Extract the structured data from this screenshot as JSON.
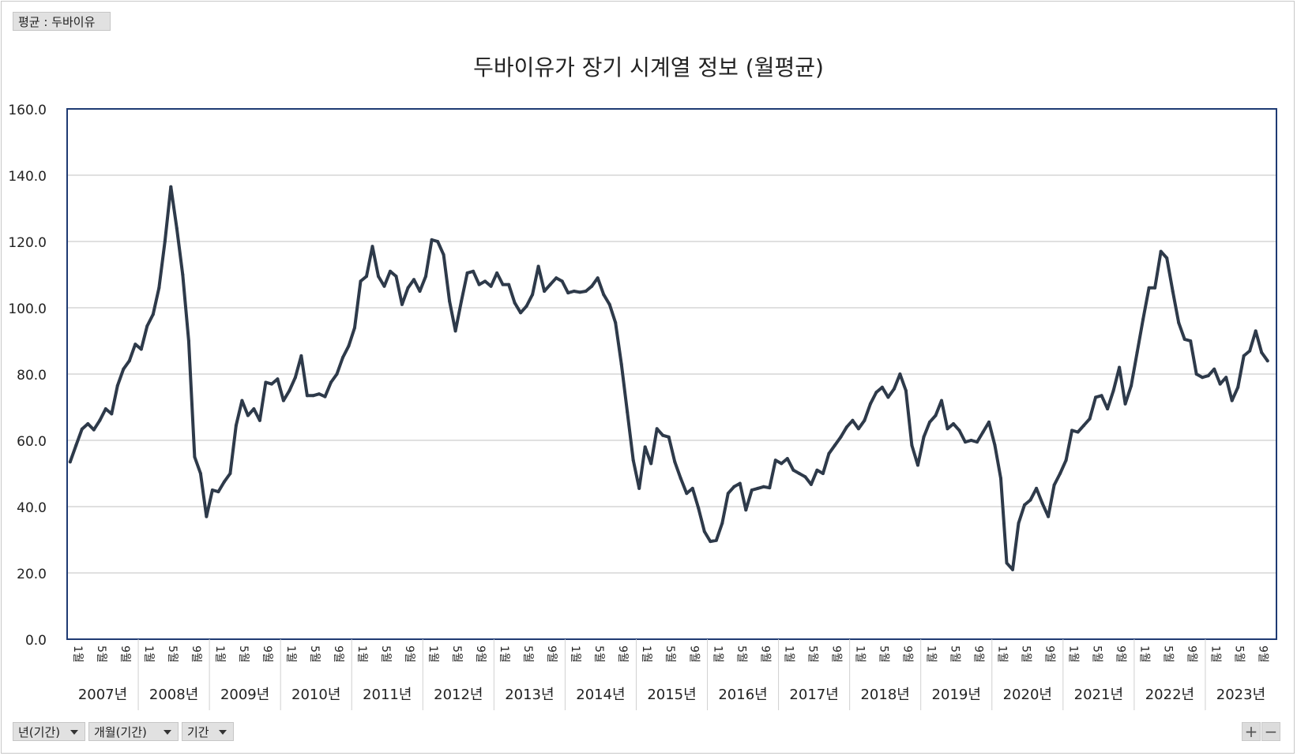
{
  "filter_label": "평균 : 두바이유",
  "field_buttons": [
    {
      "label": "년(기간)"
    },
    {
      "label": "개월(기간)"
    },
    {
      "label": "기간"
    }
  ],
  "zoom": {
    "plus": "+",
    "minus": "−"
  },
  "colors": {
    "line": "#2e3a4a",
    "plot_border": "#1f3b73",
    "grid": "#d6d6d6",
    "separator": "#d0d0d0"
  },
  "chart_data": {
    "type": "line",
    "title": "두바이유가 장기 시계열 정보 (월평균)",
    "xlabel": "",
    "ylabel": "",
    "ylim": [
      0,
      160
    ],
    "y_ticks": [
      "0.0",
      "20.0",
      "40.0",
      "60.0",
      "80.0",
      "100.0",
      "120.0",
      "140.0",
      "160.0"
    ],
    "grid": true,
    "month_tick_labels": [
      "1월",
      "5월",
      "9월"
    ],
    "years": [
      "2007년",
      "2008년",
      "2009년",
      "2010년",
      "2011년",
      "2012년",
      "2013년",
      "2014년",
      "2015년",
      "2016년",
      "2017년",
      "2018년",
      "2019년",
      "2020년",
      "2021년",
      "2022년",
      "2023년"
    ],
    "x_start": "2007-01",
    "series": [
      {
        "values": [
          53.5,
          58.5,
          63.4,
          65.0,
          63.2,
          66.0,
          69.5,
          68.0,
          76.5,
          81.5,
          84.0,
          89.0,
          87.5,
          94.5,
          98.0,
          106.0,
          120.0,
          136.5,
          124.0,
          110.0,
          90.0,
          55.0,
          50.0,
          37.0,
          45.0,
          44.5,
          47.5,
          50.0,
          64.5,
          72.0,
          67.5,
          69.5,
          66.0,
          77.5,
          77.0,
          78.5,
          72.0,
          75.0,
          79.0,
          85.5,
          73.5,
          73.5,
          74.0,
          73.2,
          77.5,
          80.0,
          85.0,
          88.5,
          94.0,
          108.0,
          109.5,
          118.5,
          109.5,
          106.5,
          111.0,
          109.5,
          101.0,
          106.0,
          108.5,
          105.0,
          109.5,
          120.5,
          120.0,
          116.0,
          102.0,
          93.0,
          102.0,
          110.5,
          111.0,
          107.0,
          108.0,
          106.5,
          110.5,
          107.0,
          107.0,
          101.5,
          98.5,
          100.5,
          104.0,
          112.5,
          105.0,
          107.0,
          109.0,
          108.0,
          104.5,
          105.0,
          104.7,
          105.0,
          106.5,
          109.0,
          104.0,
          101.0,
          95.5,
          83.0,
          68.5,
          54.0,
          45.5,
          58.0,
          53.0,
          63.5,
          61.5,
          61.0,
          53.5,
          48.5,
          44.0,
          45.5,
          39.5,
          32.5,
          29.5,
          29.8,
          35.0,
          44.0,
          46.0,
          47.0,
          39.0,
          45.0,
          45.5,
          46.0,
          45.7,
          54.0,
          53.0,
          54.5,
          51.0,
          50.0,
          49.0,
          46.7,
          51.0,
          50.0,
          56.0,
          58.5,
          61.0,
          64.0,
          66.0,
          63.5,
          66.0,
          71.0,
          74.5,
          76.0,
          73.0,
          75.5,
          80.0,
          75.0,
          58.5,
          52.5,
          61.0,
          65.5,
          67.5,
          72.0,
          63.5,
          65.0,
          63.0,
          59.5,
          60.0,
          59.5,
          62.5,
          65.5,
          58.5,
          48.5,
          23.0,
          21.0,
          35.0,
          40.5,
          42.0,
          45.5,
          41.0,
          37.0,
          46.5,
          50.0,
          54.0,
          63.0,
          62.5,
          64.5,
          66.5,
          73.0,
          73.5,
          69.5,
          75.0,
          82.0,
          71.0,
          76.5,
          86.5,
          96.5,
          106.0,
          106.0,
          117.0,
          115.0,
          105.0,
          95.5,
          90.5,
          90.0,
          80.0,
          79.0,
          79.5,
          81.5,
          77.0,
          79.0,
          72.0,
          76.0,
          85.5,
          87.0,
          93.0,
          86.5,
          84.0
        ]
      }
    ]
  }
}
